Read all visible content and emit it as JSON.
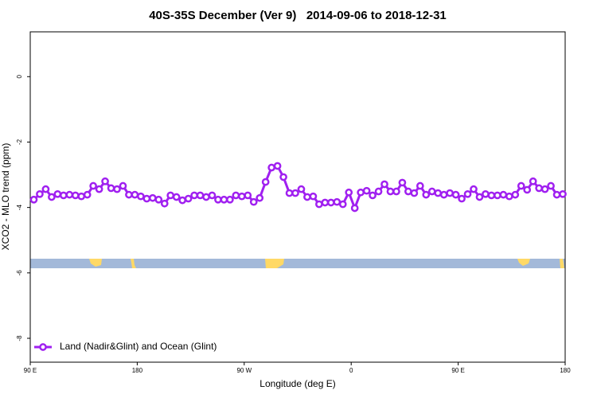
{
  "chart_data": {
    "type": "line",
    "title": "40S-35S December (Ver 9)   2014-09-06 to 2018-12-31",
    "xlabel": "Longitude (deg E)",
    "ylabel": "XCO2 - MLO trend (ppm)",
    "xlim": [
      90,
      540
    ],
    "xticks": [
      {
        "value": 90,
        "label": "90 E"
      },
      {
        "value": 180,
        "label": "180"
      },
      {
        "value": 270,
        "label": "90 W"
      },
      {
        "value": 360,
        "label": "0"
      },
      {
        "value": 450,
        "label": "90 E"
      },
      {
        "value": 540,
        "label": "180"
      }
    ],
    "ylim": [
      -8.73,
      1.37
    ],
    "yticks": [
      0,
      -2,
      -4,
      -6,
      -8
    ],
    "legend": "bottom-left",
    "x": [
      93,
      98,
      103,
      108,
      113,
      118,
      123,
      128,
      133,
      138,
      143,
      148,
      153,
      158,
      163,
      168,
      173,
      178,
      183,
      188,
      193,
      198,
      203,
      208,
      213,
      218,
      223,
      228,
      233,
      238,
      243,
      248,
      253,
      258,
      263,
      268,
      273,
      278,
      283,
      288,
      293,
      298,
      303,
      308,
      313,
      318,
      323,
      328,
      333,
      338,
      343,
      348,
      353,
      358,
      363,
      368,
      373,
      378,
      383,
      388,
      393,
      398,
      403,
      408,
      413,
      418,
      423,
      428,
      433,
      438,
      443,
      448,
      453,
      458,
      463,
      468,
      473,
      478,
      483,
      488,
      493,
      498,
      503,
      508,
      513,
      518,
      523,
      528,
      533,
      538
    ],
    "series": [
      {
        "name": "Land (Nadir&Glint) and Ocean (Glint)",
        "color": "#a020f0",
        "values": [
          -3.76,
          -3.59,
          -3.44,
          -3.68,
          -3.59,
          -3.63,
          -3.61,
          -3.63,
          -3.66,
          -3.61,
          -3.34,
          -3.44,
          -3.2,
          -3.41,
          -3.44,
          -3.34,
          -3.61,
          -3.61,
          -3.66,
          -3.73,
          -3.71,
          -3.76,
          -3.88,
          -3.63,
          -3.68,
          -3.78,
          -3.73,
          -3.63,
          -3.63,
          -3.68,
          -3.63,
          -3.76,
          -3.76,
          -3.76,
          -3.63,
          -3.66,
          -3.63,
          -3.83,
          -3.71,
          -3.22,
          -2.78,
          -2.73,
          -3.07,
          -3.56,
          -3.56,
          -3.44,
          -3.68,
          -3.66,
          -3.9,
          -3.85,
          -3.85,
          -3.83,
          -3.9,
          -3.54,
          -4.02,
          -3.54,
          -3.49,
          -3.63,
          -3.51,
          -3.29,
          -3.51,
          -3.51,
          -3.24,
          -3.51,
          -3.56,
          -3.34,
          -3.61,
          -3.51,
          -3.56,
          -3.61,
          -3.56,
          -3.61,
          -3.73,
          -3.59,
          -3.44,
          -3.68,
          -3.59,
          -3.63,
          -3.63,
          -3.61,
          -3.66,
          -3.61,
          -3.34,
          -3.46,
          -3.2,
          -3.41,
          -3.44,
          -3.34,
          -3.61,
          -3.59
        ]
      }
    ]
  }
}
